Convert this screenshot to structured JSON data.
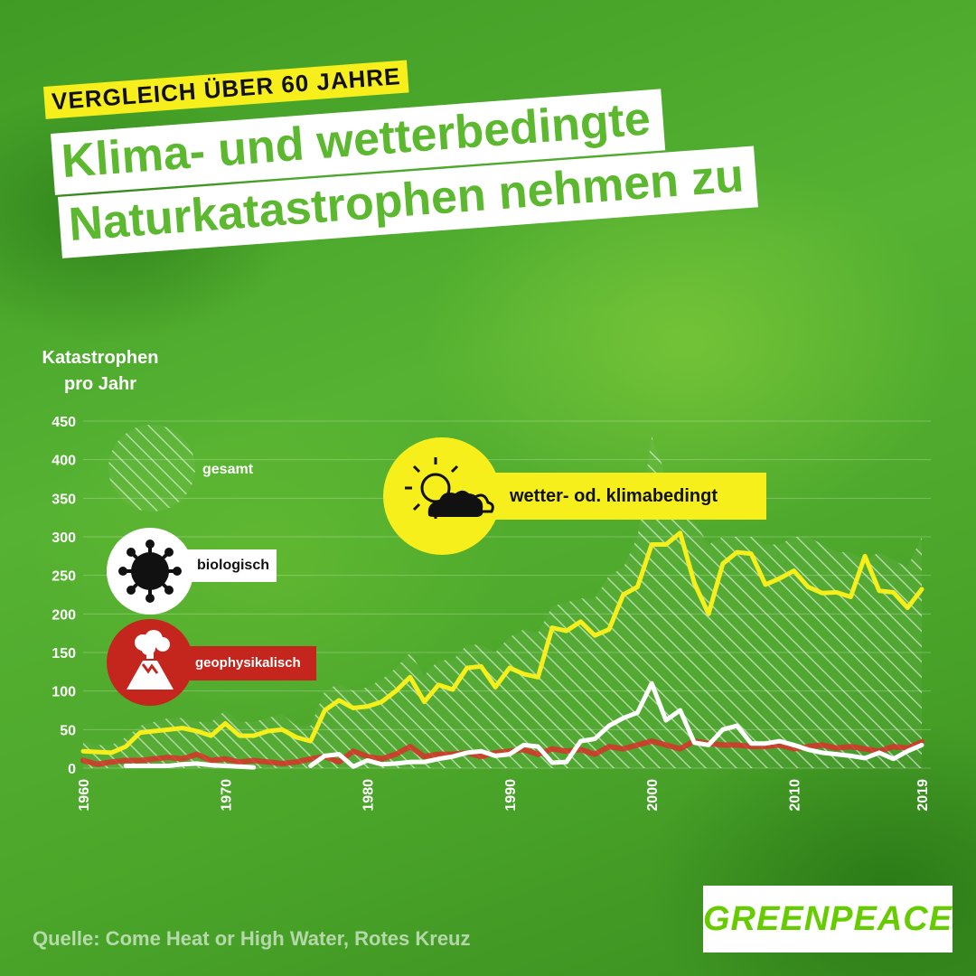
{
  "header": {
    "kicker": "VERGLEICH ÜBER 60 JAHRE",
    "title_line1": "Klima- und wetterbedingte",
    "title_line2": "Naturkatastrophen nehmen zu"
  },
  "legend": {
    "total": "gesamt",
    "weather": "wetter- od. klimabedingt",
    "biological": "biologisch",
    "geophysical": "geophysikalisch"
  },
  "source": "Quelle: Come Heat or High Water, Rotes Kreuz",
  "logo": "GREENPEACE",
  "colors": {
    "weather": "#f7ef1c",
    "biological": "#ffffff",
    "geophysical": "#d9312a",
    "total": "#ffffff",
    "background": "#4ba52a",
    "title_text": "#5cb82e"
  },
  "icons": {
    "weather": "sun-cloud-icon",
    "biological": "virus-icon",
    "geophysical": "volcano-icon"
  },
  "chart_data": {
    "type": "line",
    "ylabel": "Katastrophen pro Jahr",
    "ylim": [
      0,
      450
    ],
    "yticks": [
      0,
      50,
      100,
      150,
      200,
      250,
      300,
      350,
      400,
      450
    ],
    "xlim": [
      1960,
      2019
    ],
    "xticks": [
      "1960",
      "1970",
      "1980",
      "1990",
      "2000",
      "2010",
      "2019"
    ],
    "x": [
      1960,
      1961,
      1962,
      1963,
      1964,
      1965,
      1966,
      1967,
      1968,
      1969,
      1970,
      1971,
      1972,
      1973,
      1974,
      1975,
      1976,
      1977,
      1978,
      1979,
      1980,
      1981,
      1982,
      1983,
      1984,
      1985,
      1986,
      1987,
      1988,
      1989,
      1990,
      1991,
      1992,
      1993,
      1994,
      1995,
      1996,
      1997,
      1998,
      1999,
      2000,
      2001,
      2002,
      2003,
      2004,
      2005,
      2006,
      2007,
      2008,
      2009,
      2010,
      2011,
      2012,
      2013,
      2014,
      2015,
      2016,
      2017,
      2018,
      2019
    ],
    "series": [
      {
        "name": "gesamt",
        "style": "hatched-area",
        "values": [
          35,
          30,
          30,
          40,
          55,
          60,
          65,
          65,
          60,
          60,
          75,
          60,
          60,
          65,
          70,
          55,
          55,
          100,
          110,
          100,
          105,
          115,
          130,
          150,
          120,
          140,
          140,
          160,
          160,
          150,
          170,
          180,
          175,
          210,
          215,
          220,
          220,
          250,
          260,
          300,
          430,
          380,
          340,
          320,
          290,
          300,
          300,
          300,
          290,
          290,
          300,
          300,
          290,
          280,
          280,
          270,
          280,
          270,
          260,
          300
        ]
      },
      {
        "name": "wetter- od. klimabedingt",
        "values": [
          22,
          21,
          20,
          28,
          46,
          48,
          50,
          52,
          48,
          42,
          58,
          42,
          42,
          48,
          50,
          40,
          35,
          75,
          88,
          78,
          80,
          86,
          100,
          118,
          86,
          108,
          102,
          130,
          132,
          105,
          130,
          122,
          118,
          182,
          178,
          190,
          172,
          180,
          225,
          235,
          290,
          290,
          305,
          240,
          200,
          265,
          280,
          278,
          238,
          246,
          256,
          235,
          227,
          228,
          222,
          275,
          230,
          228,
          208,
          232
        ]
      },
      {
        "name": "biologisch",
        "values": [
          null,
          null,
          null,
          3,
          3,
          3,
          3,
          5,
          6,
          4,
          3,
          2,
          1,
          null,
          null,
          null,
          3,
          16,
          18,
          2,
          10,
          5,
          6,
          8,
          8,
          12,
          15,
          20,
          22,
          16,
          18,
          30,
          28,
          7,
          8,
          35,
          38,
          55,
          65,
          72,
          110,
          62,
          75,
          33,
          30,
          50,
          55,
          32,
          32,
          35,
          30,
          24,
          20,
          18,
          16,
          13,
          20,
          12,
          22,
          30
        ]
      },
      {
        "name": "geophysikalisch",
        "values": [
          10,
          5,
          8,
          10,
          10,
          12,
          14,
          12,
          18,
          10,
          12,
          8,
          10,
          8,
          6,
          8,
          12,
          15,
          8,
          22,
          15,
          12,
          18,
          28,
          15,
          18,
          18,
          20,
          15,
          20,
          22,
          24,
          18,
          25,
          22,
          24,
          18,
          28,
          25,
          30,
          35,
          30,
          25,
          35,
          32,
          30,
          30,
          28,
          28,
          30,
          25,
          28,
          30,
          26,
          28,
          25,
          22,
          28,
          26,
          34
        ]
      }
    ]
  }
}
